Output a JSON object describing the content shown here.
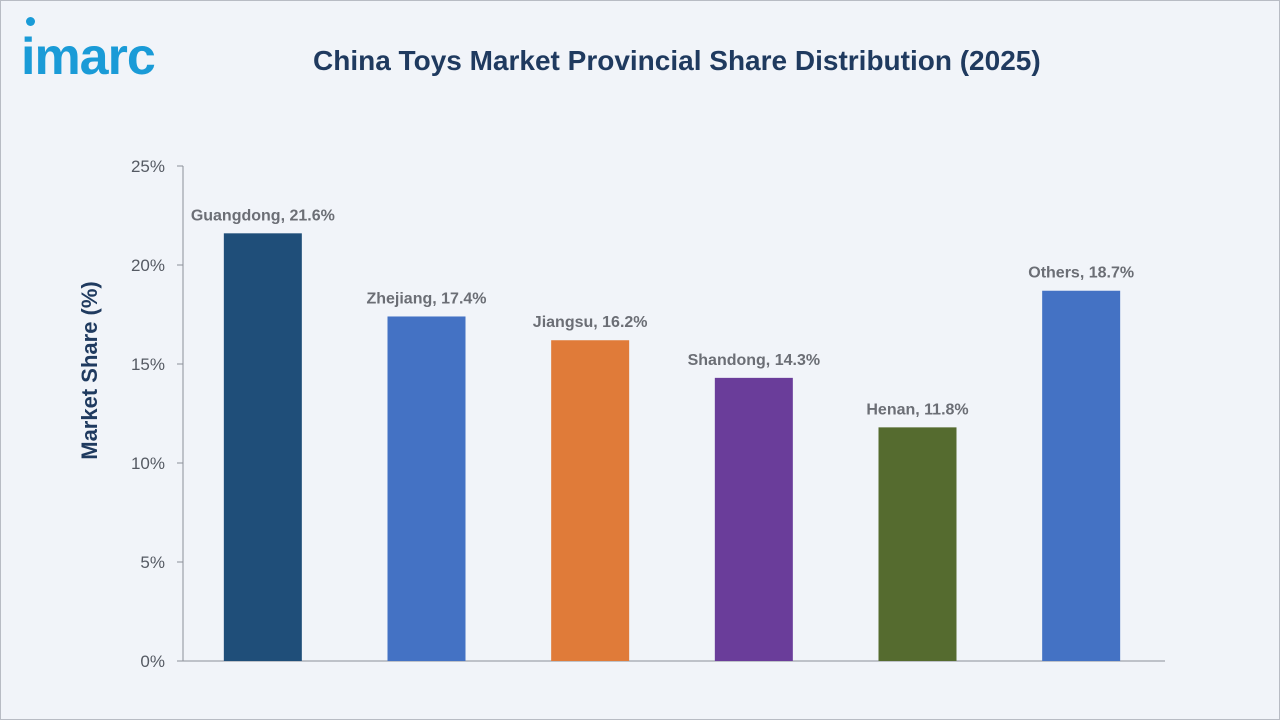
{
  "brand": {
    "logo_text": "imarc"
  },
  "chart_data": {
    "type": "bar",
    "title": "China Toys Market Provincial Share Distribution (2025)",
    "xlabel": "",
    "ylabel": "Market Share (%)",
    "ylim": [
      0,
      25
    ],
    "yticks": [
      0,
      5,
      10,
      15,
      20,
      25
    ],
    "ytick_labels": [
      "0%",
      "5%",
      "10%",
      "15%",
      "20%",
      "25%"
    ],
    "grid": false,
    "categories": [
      "Guangdong",
      "Zhejiang",
      "Jiangsu",
      "Shandong",
      "Henan",
      "Others"
    ],
    "values": [
      21.6,
      17.4,
      16.2,
      14.3,
      11.8,
      18.7
    ],
    "data_labels": [
      "Guangdong, 21.6%",
      "Zhejiang, 17.4%",
      "Jiangsu, 16.2%",
      "Shandong, 14.3%",
      "Henan, 11.8%",
      "Others, 18.7%"
    ],
    "colors": [
      "#1f4e79",
      "#4472c4",
      "#e07b39",
      "#6a3d9a",
      "#556b2f",
      "#4472c4"
    ]
  }
}
